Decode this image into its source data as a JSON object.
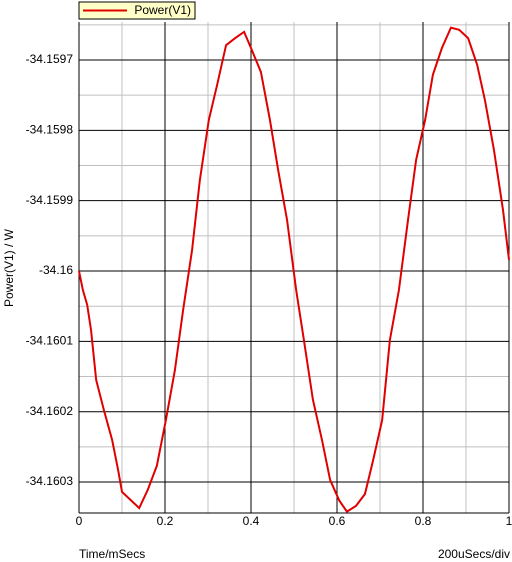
{
  "chart_data": {
    "type": "line",
    "legend": "top-left",
    "xlabel": "Time/mSecs",
    "x_division_label": "200uSecs/div",
    "ylabel": "Power(V1) / W",
    "xlim": [
      0,
      1
    ],
    "xticks": [
      0,
      0.2,
      0.4,
      0.6,
      0.8,
      1
    ],
    "x_minor_ticks": [
      0.1,
      0.3,
      0.5,
      0.7,
      0.9
    ],
    "ylim": [
      -34.160344,
      -34.159646
    ],
    "yticks": [
      -34.1603,
      -34.1602,
      -34.1601,
      -34.16,
      -34.1599,
      -34.1598,
      -34.1597
    ],
    "y_minor_ticks": [
      -34.16025,
      -34.16015,
      -34.16005,
      -34.15995,
      -34.15985,
      -34.15975,
      -34.15965
    ],
    "grid": true,
    "series": [
      {
        "name": "Power(V1)",
        "color": "#e00000",
        "x": [
          0,
          0.009,
          0.019,
          0.028,
          0.04,
          0.058,
          0.077,
          0.091,
          0.1,
          0.121,
          0.14,
          0.16,
          0.181,
          0.202,
          0.223,
          0.242,
          0.263,
          0.281,
          0.302,
          0.321,
          0.342,
          0.363,
          0.384,
          0.402,
          0.423,
          0.444,
          0.463,
          0.484,
          0.505,
          0.523,
          0.544,
          0.565,
          0.584,
          0.605,
          0.623,
          0.644,
          0.665,
          0.684,
          0.705,
          0.723,
          0.744,
          0.765,
          0.784,
          0.805,
          0.823,
          0.844,
          0.865,
          0.884,
          0.905,
          0.926,
          0.944,
          0.965,
          0.986,
          1
        ],
        "values": [
          -34.16,
          -34.160027,
          -34.160048,
          -34.160084,
          -34.160155,
          -34.160198,
          -34.16024,
          -34.160283,
          -34.160314,
          -34.160326,
          -34.160337,
          -34.160311,
          -34.160277,
          -34.160212,
          -34.160141,
          -34.160056,
          -34.15997,
          -34.159871,
          -34.159785,
          -34.159736,
          -34.159679,
          -34.159669,
          -34.15966,
          -34.159686,
          -34.159717,
          -34.159785,
          -34.159856,
          -34.159928,
          -34.160027,
          -34.160098,
          -34.160183,
          -34.16024,
          -34.160297,
          -34.160326,
          -34.160342,
          -34.160334,
          -34.160317,
          -34.160269,
          -34.160212,
          -34.160098,
          -34.160027,
          -34.159928,
          -34.159842,
          -34.159785,
          -34.159721,
          -34.159683,
          -34.159654,
          -34.159657,
          -34.159669,
          -34.159707,
          -34.159757,
          -34.159828,
          -34.159913,
          -34.159984
        ]
      }
    ]
  }
}
